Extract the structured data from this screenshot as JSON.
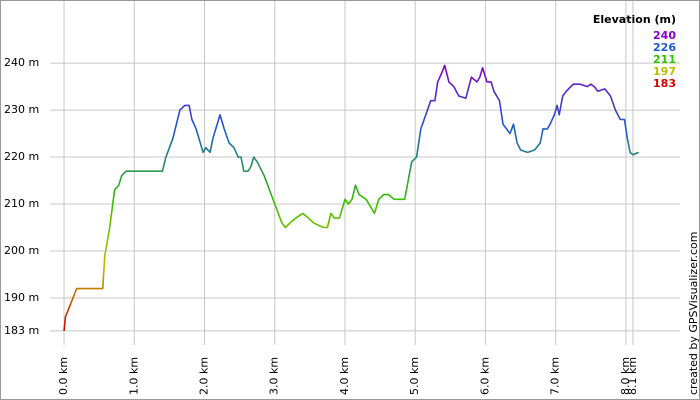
{
  "chart_data": {
    "type": "line",
    "legend_title": "Elevation (m)",
    "credit": "created by GPSVisualizer.com",
    "color_scale": [
      {
        "value": 240,
        "color": "#8a00c8"
      },
      {
        "value": 226,
        "color": "#1c5ccc"
      },
      {
        "value": 211,
        "color": "#33c000"
      },
      {
        "value": 197,
        "color": "#b8c000"
      },
      {
        "value": 183,
        "color": "#d40000"
      }
    ],
    "x": [
      0,
      0.02,
      0.1,
      0.18,
      0.3,
      0.5,
      0.55,
      0.58,
      0.65,
      0.72,
      0.78,
      0.82,
      0.88,
      1.0,
      1.2,
      1.35,
      1.4,
      1.45,
      1.5,
      1.55,
      1.6,
      1.65,
      1.72,
      1.78,
      1.82,
      1.88,
      1.92,
      1.98,
      2.02,
      2.08,
      2.12,
      2.18,
      2.22,
      2.28,
      2.35,
      2.42,
      2.48,
      2.52,
      2.56,
      2.62,
      2.66,
      2.7,
      2.75,
      2.85,
      2.95,
      3.05,
      3.1,
      3.15,
      3.22,
      3.3,
      3.4,
      3.48,
      3.55,
      3.62,
      3.7,
      3.75,
      3.8,
      3.85,
      3.92,
      4.0,
      4.05,
      4.1,
      4.15,
      4.2,
      4.3,
      4.38,
      4.42,
      4.48,
      4.55,
      4.62,
      4.7,
      4.78,
      4.85,
      4.9,
      4.95,
      5.02,
      5.08,
      5.15,
      5.22,
      5.28,
      5.32,
      5.38,
      5.42,
      5.48,
      5.55,
      5.62,
      5.72,
      5.8,
      5.88,
      5.92,
      5.96,
      6.02,
      6.08,
      6.12,
      6.2,
      6.25,
      6.3,
      6.35,
      6.4,
      6.45,
      6.5,
      6.6,
      6.7,
      6.78,
      6.82,
      6.88,
      6.92,
      6.98,
      7.02,
      7.05,
      7.1,
      7.15,
      7.25,
      7.35,
      7.45,
      7.5,
      7.55,
      7.6,
      7.7,
      7.78,
      7.85,
      7.92,
      7.98,
      8.02,
      8.06,
      8.1,
      8.18
    ],
    "values": [
      183,
      186,
      189,
      192,
      192,
      192,
      192,
      199,
      205,
      213,
      214,
      216,
      217,
      217,
      217,
      217,
      217,
      220,
      222,
      224,
      227,
      230,
      231,
      231,
      228,
      226,
      224,
      221,
      222,
      221,
      224,
      227,
      229,
      226,
      223,
      222,
      220,
      220,
      217,
      217,
      218,
      220,
      219,
      216,
      212,
      208,
      206,
      205,
      206,
      207,
      208,
      207,
      206,
      205.5,
      205,
      205,
      208,
      207,
      207,
      211,
      210,
      211,
      214,
      212,
      211,
      209,
      208,
      211,
      212,
      212,
      211,
      211,
      211,
      215,
      219,
      220,
      226,
      229,
      232,
      232,
      236,
      238,
      239.5,
      236,
      235,
      233,
      232.5,
      237,
      236,
      237,
      239,
      236,
      236,
      234,
      232,
      227,
      226,
      225,
      227,
      223,
      221.5,
      221,
      221.5,
      223,
      226,
      226,
      227,
      229,
      231,
      229,
      233,
      234,
      235.5,
      235.5,
      235,
      235.5,
      235,
      234,
      234.5,
      233,
      230,
      228,
      228,
      224,
      221,
      220.5,
      221
    ],
    "xlim": [
      -0.2,
      8.77
    ],
    "ylim": [
      180,
      253
    ],
    "xticks": [
      {
        "value": 0,
        "label": "0.0 km"
      },
      {
        "value": 1,
        "label": "1.0 km"
      },
      {
        "value": 2,
        "label": "2.0 km"
      },
      {
        "value": 3,
        "label": "3.0 km"
      },
      {
        "value": 4,
        "label": "4.0 km"
      },
      {
        "value": 5,
        "label": "5.0 km"
      },
      {
        "value": 6,
        "label": "6.0 km"
      },
      {
        "value": 7,
        "label": "7.0 km"
      },
      {
        "value": 8,
        "label": "8.0 km"
      },
      {
        "value": 8.1,
        "label": "8.1 km"
      }
    ],
    "yticks": [
      {
        "value": 183,
        "label": "183 m"
      },
      {
        "value": 190,
        "label": "190 m"
      },
      {
        "value": 200,
        "label": "200 m"
      },
      {
        "value": 210,
        "label": "210 m"
      },
      {
        "value": 220,
        "label": "220 m"
      },
      {
        "value": 230,
        "label": "230 m"
      },
      {
        "value": 240,
        "label": "240 m"
      }
    ],
    "grid": true
  }
}
